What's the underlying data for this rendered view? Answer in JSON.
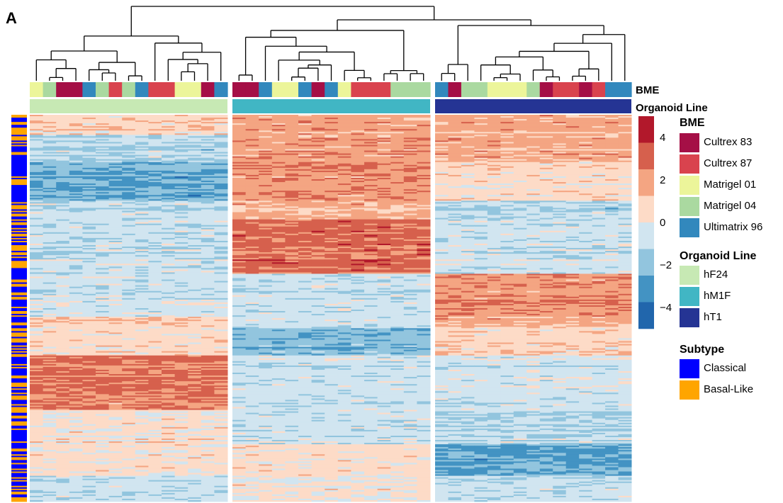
{
  "panel_label": "A",
  "chart_data": {
    "type": "heatmap",
    "value_range": [
      -5,
      5
    ],
    "color_scale": {
      "ticks": [
        4,
        2,
        0,
        -2,
        -4
      ],
      "tick_labels": [
        "4",
        "2",
        "0",
        "−2",
        "−4"
      ],
      "colors": [
        "#b2182b",
        "#d6604d",
        "#f4a582",
        "#fddbc7",
        "#d1e5f0",
        "#92c5de",
        "#4393c3",
        "#2166ac"
      ]
    },
    "annotation_tracks": [
      "BME",
      "Organoid Line"
    ],
    "columns_bme": [
      "Matrigel 01",
      "Matrigel 04",
      "Cultrex 83",
      "Cultrex 83",
      "Ultimatrix 96",
      "Matrigel 04",
      "Cultrex 87",
      "Matrigel 04",
      "Ultimatrix 96",
      "Cultrex 87",
      "Cultrex 87",
      "Matrigel 01",
      "Matrigel 01",
      "Cultrex 83",
      "Ultimatrix 96",
      "Cultrex 83",
      "Cultrex 83",
      "Ultimatrix 96",
      "Matrigel 01",
      "Matrigel 01",
      "Ultimatrix 96",
      "Cultrex 83",
      "Ultimatrix 96",
      "Matrigel 01",
      "Cultrex 87",
      "Cultrex 87",
      "Cultrex 87",
      "Matrigel 04",
      "Matrigel 04",
      "Matrigel 04",
      "Ultimatrix 96",
      "Cultrex 83",
      "Matrigel 04",
      "Matrigel 04",
      "Matrigel 01",
      "Matrigel 01",
      "Matrigel 01",
      "Matrigel 04",
      "Cultrex 83",
      "Cultrex 87",
      "Cultrex 87",
      "Cultrex 83",
      "Cultrex 87",
      "Ultimatrix 96",
      "Ultimatrix 96"
    ],
    "columns_organoid": [
      "hF24",
      "hF24",
      "hF24",
      "hF24",
      "hF24",
      "hF24",
      "hF24",
      "hF24",
      "hF24",
      "hF24",
      "hF24",
      "hF24",
      "hF24",
      "hF24",
      "hF24",
      "hM1F",
      "hM1F",
      "hM1F",
      "hM1F",
      "hM1F",
      "hM1F",
      "hM1F",
      "hM1F",
      "hM1F",
      "hM1F",
      "hM1F",
      "hM1F",
      "hM1F",
      "hM1F",
      "hM1F",
      "hT1",
      "hT1",
      "hT1",
      "hT1",
      "hT1",
      "hT1",
      "hT1",
      "hT1",
      "hT1",
      "hT1",
      "hT1",
      "hT1",
      "hT1",
      "hT1",
      "hT1"
    ],
    "column_groups": [
      "hF24",
      "hM1F",
      "hT1"
    ],
    "row_count": 270,
    "row_subtype_blocks": [
      {
        "subtype": "Basal-Like",
        "from": 0.0,
        "to": 0.08,
        "pattern": "mixed"
      },
      {
        "subtype": "Classical",
        "from": 0.08,
        "to": 0.15,
        "pattern": "mostly"
      },
      {
        "subtype": "Basal-Like",
        "from": 0.15,
        "to": 0.18,
        "pattern": "mixed"
      },
      {
        "subtype": "Classical",
        "from": 0.18,
        "to": 0.22,
        "pattern": "mostly"
      },
      {
        "subtype": "Basal-Like",
        "from": 0.22,
        "to": 0.55,
        "pattern": "mixed"
      },
      {
        "subtype": "Basal-Like",
        "from": 0.55,
        "to": 0.62,
        "pattern": "mostly"
      },
      {
        "subtype": "Basal-Like",
        "from": 0.62,
        "to": 0.82,
        "pattern": "mixed"
      },
      {
        "subtype": "Classical",
        "from": 0.82,
        "to": 0.86,
        "pattern": "mostly"
      },
      {
        "subtype": "Basal-Like",
        "from": 0.86,
        "to": 1.0,
        "pattern": "mixed"
      }
    ],
    "row_blocks": [
      {
        "from": 0.0,
        "to": 0.05,
        "levels": [
          0.6,
          1.4,
          1.3
        ]
      },
      {
        "from": 0.05,
        "to": 0.12,
        "levels": [
          -1.0,
          1.5,
          1.3
        ]
      },
      {
        "from": 0.12,
        "to": 0.22,
        "levels": [
          -2.0,
          1.8,
          0.5
        ]
      },
      {
        "from": 0.22,
        "to": 0.27,
        "levels": [
          -0.7,
          1.2,
          -0.9
        ]
      },
      {
        "from": 0.27,
        "to": 0.41,
        "levels": [
          -0.7,
          2.3,
          -0.6
        ]
      },
      {
        "from": 0.41,
        "to": 0.52,
        "levels": [
          -0.5,
          -0.6,
          1.8
        ]
      },
      {
        "from": 0.52,
        "to": 0.55,
        "levels": [
          0.8,
          -0.5,
          1.2
        ]
      },
      {
        "from": 0.55,
        "to": 0.62,
        "levels": [
          0.4,
          -1.8,
          0.6
        ]
      },
      {
        "from": 0.62,
        "to": 0.76,
        "levels": [
          2.0,
          -0.7,
          -0.6
        ]
      },
      {
        "from": 0.76,
        "to": 0.85,
        "levels": [
          0.3,
          -0.6,
          -0.9
        ]
      },
      {
        "from": 0.85,
        "to": 0.93,
        "levels": [
          0.4,
          0.5,
          -2.0
        ]
      },
      {
        "from": 0.93,
        "to": 1.0,
        "levels": [
          -0.6,
          0.2,
          -0.7
        ]
      }
    ],
    "legend_bme": {
      "title": "BME",
      "items": [
        {
          "label": "Cultrex 83",
          "color": "#a50f46"
        },
        {
          "label": "Cultrex 87",
          "color": "#d9434e"
        },
        {
          "label": "Matrigel 01",
          "color": "#ecf59a"
        },
        {
          "label": "Matrigel 04",
          "color": "#aad9a0"
        },
        {
          "label": "Ultimatrix 96",
          "color": "#3288bd"
        }
      ]
    },
    "legend_organoid": {
      "title": "Organoid Line",
      "items": [
        {
          "label": "hF24",
          "color": "#c7e9b4"
        },
        {
          "label": "hM1F",
          "color": "#41b6c4"
        },
        {
          "label": "hT1",
          "color": "#253494"
        }
      ]
    },
    "legend_subtype": {
      "title": "Subtype",
      "items": [
        {
          "label": "Classical",
          "color": "#0000ff"
        },
        {
          "label": "Basal-Like",
          "color": "#ffa500"
        }
      ]
    }
  }
}
